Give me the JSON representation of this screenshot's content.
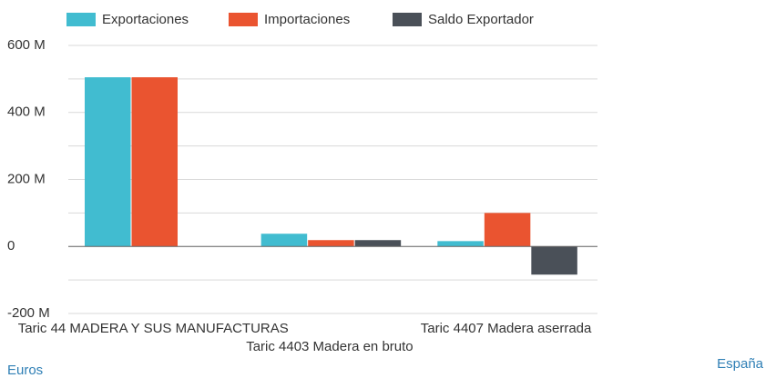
{
  "chart_data": {
    "type": "bar",
    "categories": [
      "Taric 44 MADERA Y SUS MANUFACTURAS",
      "Taric 4403 Madera en bruto",
      "Taric 4407 Madera aserrada"
    ],
    "series": [
      {
        "name": "Exportaciones",
        "color": "#41bcd0",
        "values": [
          505,
          38,
          16
        ]
      },
      {
        "name": "Importaciones",
        "color": "#ea5430",
        "values": [
          505,
          19,
          100
        ]
      },
      {
        "name": "Saldo Exportador",
        "color": "#4a5058",
        "values": [
          0,
          19,
          -84
        ]
      }
    ],
    "ylim": [
      -200,
      600
    ],
    "yticks": [
      {
        "value": -200,
        "label": "-200 M"
      },
      0,
      {
        "value": 200,
        "label": "200 M"
      },
      {
        "value": 400,
        "label": "400 M"
      },
      {
        "value": 600,
        "label": "600 M"
      }
    ],
    "minor_yticks": [
      -100,
      100,
      300,
      500
    ],
    "grid": true,
    "legend": "top",
    "y_unit_note": "Euros",
    "source_note": "España"
  }
}
